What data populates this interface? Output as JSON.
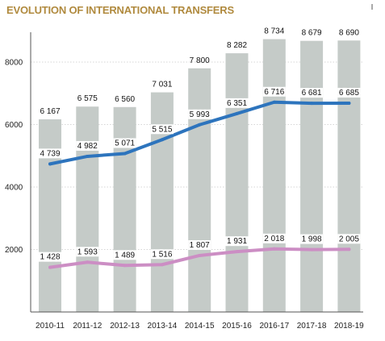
{
  "chart_data": {
    "type": "bar",
    "title": "EVOLUTION OF INTERNATIONAL TRANSFERS",
    "categories": [
      "2010-11",
      "2011-12",
      "2012-13",
      "2013-14",
      "2014-15",
      "2015-16",
      "2016-17",
      "2017-18",
      "2018-19"
    ],
    "ylim": [
      0,
      9000
    ],
    "yticks": [
      2000,
      4000,
      6000,
      8000
    ],
    "ytick_labels": [
      "2000",
      "4000",
      "6000",
      "8000"
    ],
    "grid": true,
    "series": [
      {
        "kind": "bar",
        "color": "#c5cbc8",
        "values": [
          6167,
          6575,
          6560,
          7031,
          7800,
          8282,
          8734,
          8679,
          8690
        ],
        "labels": [
          "6 167",
          "6 575",
          "6 560",
          "7 031",
          "7 800",
          "8 282",
          "8 734",
          "8 679",
          "8 690"
        ]
      },
      {
        "kind": "line",
        "color": "#2d74bd",
        "values": [
          4739,
          4982,
          5071,
          5515,
          5993,
          6351,
          6716,
          6681,
          6685
        ],
        "labels": [
          "4 739",
          "4 982",
          "5 071",
          "5 515",
          "5 993",
          "6 351",
          "6 716",
          "6 681",
          "6 685"
        ]
      },
      {
        "kind": "line",
        "color": "#cc8ec4",
        "values": [
          1428,
          1593,
          1489,
          1516,
          1807,
          1931,
          2018,
          1998,
          2005
        ],
        "labels": [
          "1 428",
          "1 593",
          "1 489",
          "1 516",
          "1 807",
          "1 931",
          "2 018",
          "1 998",
          "2 005"
        ]
      }
    ]
  }
}
